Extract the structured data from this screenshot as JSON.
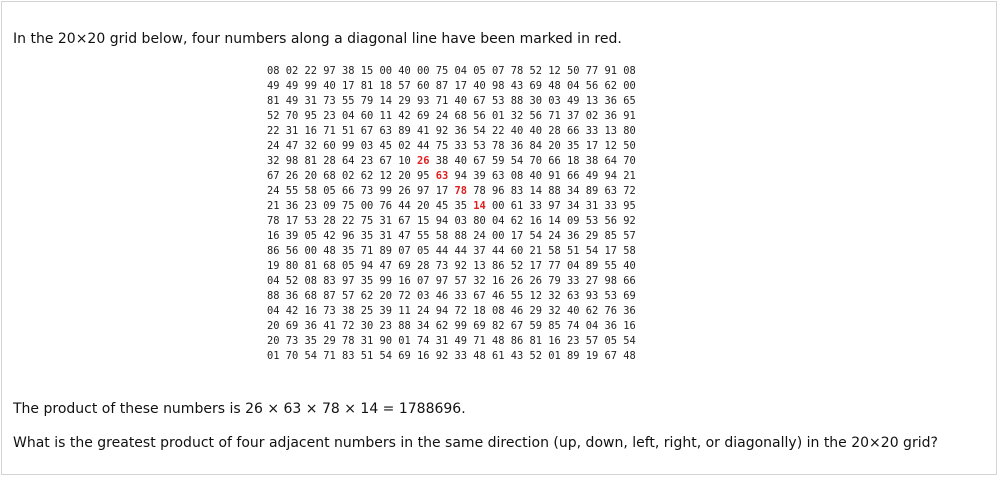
{
  "intro_text": "In the 20×20 grid below, four numbers along a diagonal line have been marked in red.",
  "grid": [
    [
      "08",
      "02",
      "22",
      "97",
      "38",
      "15",
      "00",
      "40",
      "00",
      "75",
      "04",
      "05",
      "07",
      "78",
      "52",
      "12",
      "50",
      "77",
      "91",
      "08"
    ],
    [
      "49",
      "49",
      "99",
      "40",
      "17",
      "81",
      "18",
      "57",
      "60",
      "87",
      "17",
      "40",
      "98",
      "43",
      "69",
      "48",
      "04",
      "56",
      "62",
      "00"
    ],
    [
      "81",
      "49",
      "31",
      "73",
      "55",
      "79",
      "14",
      "29",
      "93",
      "71",
      "40",
      "67",
      "53",
      "88",
      "30",
      "03",
      "49",
      "13",
      "36",
      "65"
    ],
    [
      "52",
      "70",
      "95",
      "23",
      "04",
      "60",
      "11",
      "42",
      "69",
      "24",
      "68",
      "56",
      "01",
      "32",
      "56",
      "71",
      "37",
      "02",
      "36",
      "91"
    ],
    [
      "22",
      "31",
      "16",
      "71",
      "51",
      "67",
      "63",
      "89",
      "41",
      "92",
      "36",
      "54",
      "22",
      "40",
      "40",
      "28",
      "66",
      "33",
      "13",
      "80"
    ],
    [
      "24",
      "47",
      "32",
      "60",
      "99",
      "03",
      "45",
      "02",
      "44",
      "75",
      "33",
      "53",
      "78",
      "36",
      "84",
      "20",
      "35",
      "17",
      "12",
      "50"
    ],
    [
      "32",
      "98",
      "81",
      "28",
      "64",
      "23",
      "67",
      "10",
      "26",
      "38",
      "40",
      "67",
      "59",
      "54",
      "70",
      "66",
      "18",
      "38",
      "64",
      "70"
    ],
    [
      "67",
      "26",
      "20",
      "68",
      "02",
      "62",
      "12",
      "20",
      "95",
      "63",
      "94",
      "39",
      "63",
      "08",
      "40",
      "91",
      "66",
      "49",
      "94",
      "21"
    ],
    [
      "24",
      "55",
      "58",
      "05",
      "66",
      "73",
      "99",
      "26",
      "97",
      "17",
      "78",
      "78",
      "96",
      "83",
      "14",
      "88",
      "34",
      "89",
      "63",
      "72"
    ],
    [
      "21",
      "36",
      "23",
      "09",
      "75",
      "00",
      "76",
      "44",
      "20",
      "45",
      "35",
      "14",
      "00",
      "61",
      "33",
      "97",
      "34",
      "31",
      "33",
      "95"
    ],
    [
      "78",
      "17",
      "53",
      "28",
      "22",
      "75",
      "31",
      "67",
      "15",
      "94",
      "03",
      "80",
      "04",
      "62",
      "16",
      "14",
      "09",
      "53",
      "56",
      "92"
    ],
    [
      "16",
      "39",
      "05",
      "42",
      "96",
      "35",
      "31",
      "47",
      "55",
      "58",
      "88",
      "24",
      "00",
      "17",
      "54",
      "24",
      "36",
      "29",
      "85",
      "57"
    ],
    [
      "86",
      "56",
      "00",
      "48",
      "35",
      "71",
      "89",
      "07",
      "05",
      "44",
      "44",
      "37",
      "44",
      "60",
      "21",
      "58",
      "51",
      "54",
      "17",
      "58"
    ],
    [
      "19",
      "80",
      "81",
      "68",
      "05",
      "94",
      "47",
      "69",
      "28",
      "73",
      "92",
      "13",
      "86",
      "52",
      "17",
      "77",
      "04",
      "89",
      "55",
      "40"
    ],
    [
      "04",
      "52",
      "08",
      "83",
      "97",
      "35",
      "99",
      "16",
      "07",
      "97",
      "57",
      "32",
      "16",
      "26",
      "26",
      "79",
      "33",
      "27",
      "98",
      "66"
    ],
    [
      "88",
      "36",
      "68",
      "87",
      "57",
      "62",
      "20",
      "72",
      "03",
      "46",
      "33",
      "67",
      "46",
      "55",
      "12",
      "32",
      "63",
      "93",
      "53",
      "69"
    ],
    [
      "04",
      "42",
      "16",
      "73",
      "38",
      "25",
      "39",
      "11",
      "24",
      "94",
      "72",
      "18",
      "08",
      "46",
      "29",
      "32",
      "40",
      "62",
      "76",
      "36"
    ],
    [
      "20",
      "69",
      "36",
      "41",
      "72",
      "30",
      "23",
      "88",
      "34",
      "62",
      "99",
      "69",
      "82",
      "67",
      "59",
      "85",
      "74",
      "04",
      "36",
      "16"
    ],
    [
      "20",
      "73",
      "35",
      "29",
      "78",
      "31",
      "90",
      "01",
      "74",
      "31",
      "49",
      "71",
      "48",
      "86",
      "81",
      "16",
      "23",
      "57",
      "05",
      "54"
    ],
    [
      "01",
      "70",
      "54",
      "71",
      "83",
      "51",
      "54",
      "69",
      "16",
      "92",
      "33",
      "48",
      "61",
      "43",
      "52",
      "01",
      "89",
      "19",
      "67",
      "48"
    ]
  ],
  "highlighted_cells": [
    [
      6,
      8
    ],
    [
      7,
      9
    ],
    [
      8,
      10
    ],
    [
      9,
      11
    ]
  ],
  "highlight_color": "#e02020",
  "product_text": "The product of these numbers is 26 × 63 × 78 × 14 = 1788696.",
  "question_text": "What is the greatest product of four adjacent numbers in the same direction (up, down, left, right, or diagonally) in the 20×20 grid?"
}
